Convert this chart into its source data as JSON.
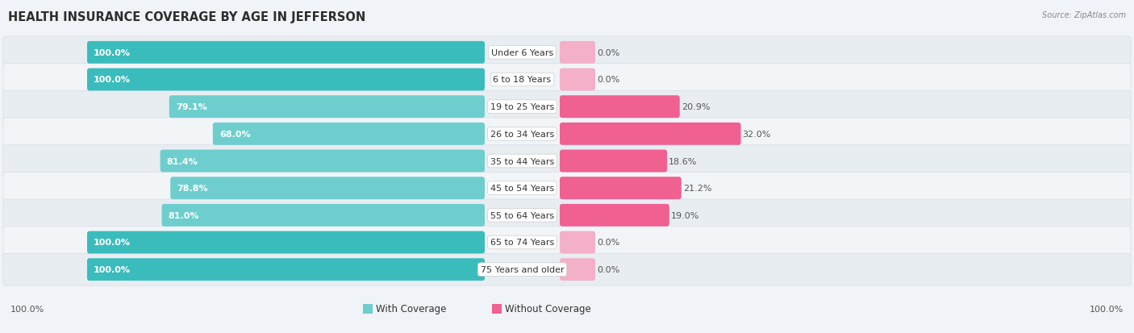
{
  "title": "HEALTH INSURANCE COVERAGE BY AGE IN JEFFERSON",
  "source": "Source: ZipAtlas.com",
  "categories": [
    "Under 6 Years",
    "6 to 18 Years",
    "19 to 25 Years",
    "26 to 34 Years",
    "35 to 44 Years",
    "45 to 54 Years",
    "55 to 64 Years",
    "65 to 74 Years",
    "75 Years and older"
  ],
  "with_coverage": [
    100.0,
    100.0,
    79.1,
    68.0,
    81.4,
    78.8,
    81.0,
    100.0,
    100.0
  ],
  "without_coverage": [
    0.0,
    0.0,
    20.9,
    32.0,
    18.6,
    21.2,
    19.0,
    0.0,
    0.0
  ],
  "color_with_full": "#3BBCBC",
  "color_with_part": "#6ECECE",
  "color_without_full": "#F06090",
  "color_without_light": "#F4B0C8",
  "row_bg_dark": "#E8EDF2",
  "row_bg_light": "#F2F5F8",
  "label_fontsize": 8.0,
  "title_fontsize": 10.5,
  "legend_fontsize": 8.5,
  "bar_label_fontsize": 8.0,
  "figsize": [
    14.06,
    4.14
  ],
  "dpi": 100
}
